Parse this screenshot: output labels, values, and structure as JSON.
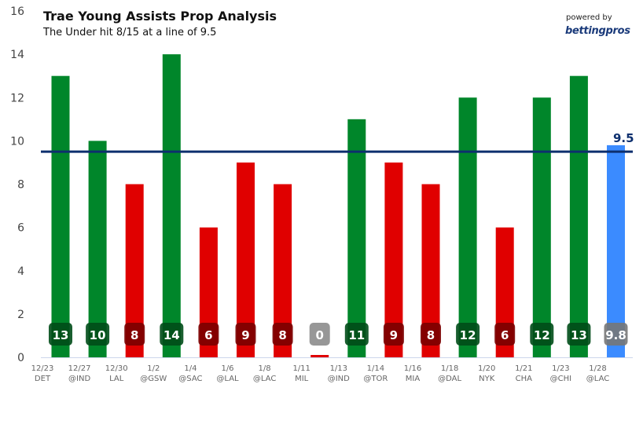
{
  "chart_data": {
    "type": "bar",
    "title": "Trae Young Assists Prop Analysis",
    "subtitle": "The Under hit 8/15 at a line of 9.5",
    "categories": [
      {
        "date": "12/23",
        "opp": "DET"
      },
      {
        "date": "12/27",
        "opp": "@IND"
      },
      {
        "date": "12/30",
        "opp": "LAL"
      },
      {
        "date": "1/2",
        "opp": "@GSW"
      },
      {
        "date": "1/4",
        "opp": "@SAC"
      },
      {
        "date": "1/6",
        "opp": "@LAL"
      },
      {
        "date": "1/8",
        "opp": "@LAC"
      },
      {
        "date": "1/11",
        "opp": "MIL"
      },
      {
        "date": "1/13",
        "opp": "@IND"
      },
      {
        "date": "1/14",
        "opp": "@TOR"
      },
      {
        "date": "1/16",
        "opp": "MIA"
      },
      {
        "date": "1/18",
        "opp": "@DAL"
      },
      {
        "date": "1/20",
        "opp": "NYK"
      },
      {
        "date": "1/21",
        "opp": "CHA"
      },
      {
        "date": "1/23",
        "opp": "@CHI"
      },
      {
        "date": "1/28",
        "opp": "@LAC"
      }
    ],
    "values": [
      13,
      10,
      8,
      14,
      6,
      9,
      8,
      0,
      11,
      9,
      8,
      12,
      6,
      12,
      13,
      9.8
    ],
    "data_labels": [
      "13",
      "10",
      "8",
      "14",
      "6",
      "9",
      "8",
      "0",
      "11",
      "9",
      "8",
      "12",
      "6",
      "12",
      "13",
      "9.8"
    ],
    "bar_status": [
      "over",
      "over",
      "under",
      "over",
      "under",
      "under",
      "under",
      "under",
      "over",
      "under",
      "under",
      "over",
      "under",
      "over",
      "over",
      "projection"
    ],
    "line": {
      "value": 9.5,
      "label": "9.5",
      "color": "#0d2f6e"
    },
    "ylim": [
      0,
      16
    ],
    "yticks": [
      0,
      2,
      4,
      6,
      8,
      10,
      12,
      14,
      16
    ],
    "grid": false,
    "colors": {
      "over": "#00862a",
      "under": "#e00000",
      "projection": "#3b8bff"
    },
    "label_badge_colors": {
      "over": "#004d18",
      "under": "#7a0000",
      "projection": "#777777",
      "zero": "#8c8c8c"
    }
  },
  "branding": {
    "powered_by": "powered by",
    "brand": "bettingpros"
  }
}
